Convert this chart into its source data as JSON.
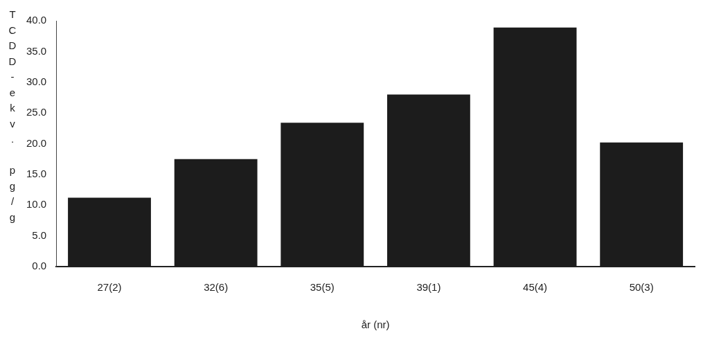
{
  "chart_data": {
    "type": "bar",
    "xlabel": "år (nr)",
    "ylabel": "TCDD-ekv. pg/g",
    "categories": [
      "27(2)",
      "32(6)",
      "35(5)",
      "39(1)",
      "45(4)",
      "50(3)"
    ],
    "values": [
      11.2,
      17.5,
      23.4,
      28.0,
      38.9,
      20.2
    ],
    "color": "#1c1c1c",
    "ylim": [
      0,
      40
    ],
    "yticks": [
      {
        "value": 0,
        "label": "0.0"
      },
      {
        "value": 5,
        "label": "5.0"
      },
      {
        "value": 10,
        "label": "10.0"
      },
      {
        "value": 15,
        "label": "15.0"
      },
      {
        "value": 20,
        "label": "20.0"
      },
      {
        "value": 25,
        "label": "25.0"
      },
      {
        "value": 30,
        "label": "30.0"
      },
      {
        "value": 35,
        "label": "35.0"
      },
      {
        "value": 40,
        "label": "40.0"
      }
    ],
    "grid": false,
    "legend": false
  }
}
